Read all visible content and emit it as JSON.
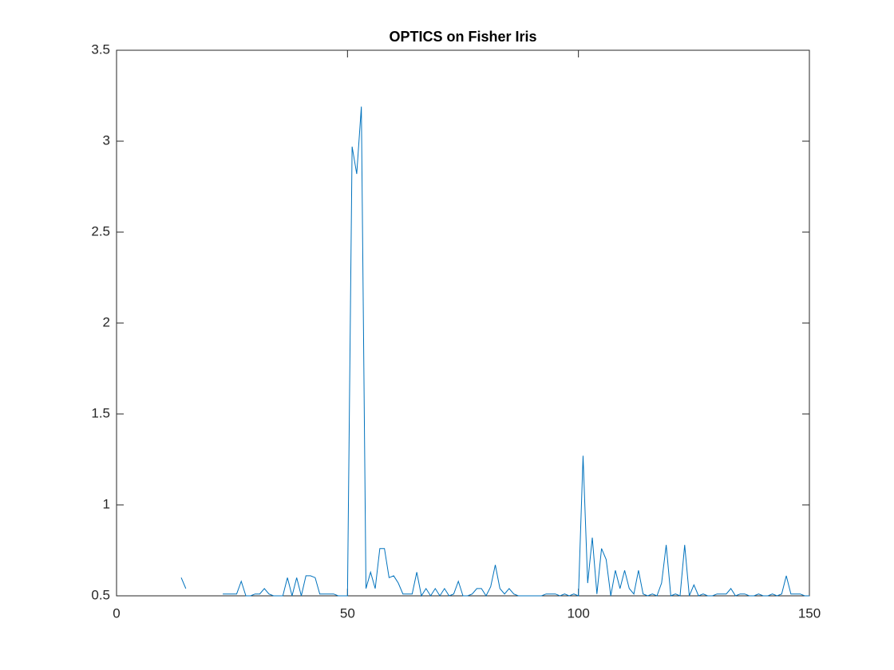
{
  "chart_data": {
    "type": "line",
    "title": "OPTICS on Fisher Iris",
    "x": [
      1,
      2,
      3,
      4,
      5,
      6,
      7,
      8,
      9,
      10,
      11,
      12,
      13,
      14,
      15,
      16,
      17,
      18,
      19,
      20,
      21,
      22,
      23,
      24,
      25,
      26,
      27,
      28,
      29,
      30,
      31,
      32,
      33,
      34,
      35,
      36,
      37,
      38,
      39,
      40,
      41,
      42,
      43,
      44,
      45,
      46,
      47,
      48,
      49,
      50,
      51,
      52,
      53,
      54,
      55,
      56,
      57,
      58,
      59,
      60,
      61,
      62,
      63,
      64,
      65,
      66,
      67,
      68,
      69,
      70,
      71,
      72,
      73,
      74,
      75,
      76,
      77,
      78,
      79,
      80,
      81,
      82,
      83,
      84,
      85,
      86,
      87,
      88,
      89,
      90,
      91,
      92,
      93,
      94,
      95,
      96,
      97,
      98,
      99,
      100,
      101,
      102,
      103,
      104,
      105,
      106,
      107,
      108,
      109,
      110,
      111,
      112,
      113,
      114,
      115,
      116,
      117,
      118,
      119,
      120,
      121,
      122,
      123,
      124,
      125,
      126,
      127,
      128,
      129,
      130,
      131,
      132,
      133,
      134,
      135,
      136,
      137,
      138,
      139,
      140,
      141,
      142,
      143,
      144,
      145,
      146,
      147,
      148,
      149,
      150
    ],
    "series": [
      {
        "color": "#0072bd",
        "values": [
          null,
          null,
          null,
          null,
          null,
          null,
          null,
          null,
          null,
          null,
          null,
          null,
          null,
          0.6,
          0.54,
          null,
          null,
          null,
          null,
          null,
          null,
          null,
          0.51,
          0.51,
          0.51,
          0.51,
          0.58,
          0.5,
          0.5,
          0.51,
          0.51,
          0.54,
          0.51,
          0.5,
          0.5,
          0.5,
          0.6,
          0.5,
          0.6,
          0.5,
          0.61,
          0.61,
          0.6,
          0.51,
          0.51,
          0.51,
          0.51,
          0.5,
          0.5,
          0.5,
          2.97,
          2.82,
          3.19,
          0.54,
          0.63,
          0.54,
          0.76,
          0.76,
          0.6,
          0.61,
          0.57,
          0.51,
          0.51,
          0.51,
          0.63,
          0.5,
          0.54,
          0.5,
          0.54,
          0.5,
          0.54,
          0.5,
          0.51,
          0.58,
          0.5,
          0.5,
          0.51,
          0.54,
          0.54,
          0.5,
          0.55,
          0.67,
          0.54,
          0.51,
          0.54,
          0.51,
          0.5,
          0.5,
          0.5,
          0.5,
          0.5,
          0.5,
          0.51,
          0.51,
          0.51,
          0.5,
          0.51,
          0.5,
          0.51,
          0.5,
          1.27,
          0.57,
          0.82,
          0.51,
          0.76,
          0.7,
          0.5,
          0.64,
          0.54,
          0.64,
          0.54,
          0.51,
          0.64,
          0.51,
          0.5,
          0.51,
          0.5,
          0.57,
          0.78,
          0.5,
          0.51,
          0.5,
          0.78,
          0.5,
          0.56,
          0.5,
          0.51,
          0.5,
          0.5,
          0.51,
          0.51,
          0.51,
          0.54,
          0.5,
          0.51,
          0.51,
          0.5,
          0.5,
          0.51,
          0.5,
          0.5,
          0.51,
          0.5,
          0.51,
          0.61,
          0.51,
          0.51,
          0.51,
          0.5,
          0.5
        ]
      }
    ],
    "xlim": [
      0,
      150
    ],
    "xticks": [
      0,
      50,
      100,
      150
    ],
    "ylim": [
      0.5,
      3.5
    ],
    "yticks": [
      0.5,
      1,
      1.5,
      2,
      2.5,
      3,
      3.5
    ]
  }
}
